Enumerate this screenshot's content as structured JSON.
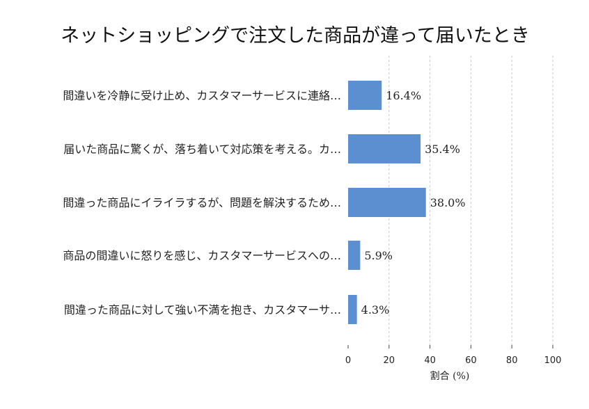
{
  "chart_data": {
    "type": "bar",
    "orientation": "horizontal",
    "title": "ネットショッピングで注文した商品が違って届いたとき",
    "categories": [
      "間違いを冷静に受け止め、カスタマーサービスに連絡…",
      "届いた商品に驚くが、落ち着いて対応策を考える。カ…",
      "間違った商品にイライラするが、問題を解決するため…",
      "商品の間違いに怒りを感じ、カスタマーサービスへの…",
      "間違った商品に対して強い不満を抱き、カスタマーサ…"
    ],
    "values": [
      16.4,
      35.4,
      38.0,
      5.9,
      4.3
    ],
    "value_labels": [
      "16.4%",
      "35.4%",
      "38.0%",
      "5.9%",
      "4.3%"
    ],
    "xlabel": "割合 (%)",
    "xlim": [
      0,
      100
    ],
    "xticks": [
      0,
      20,
      40,
      60,
      80,
      100
    ],
    "grid": "vertical dashed",
    "bar_color": "#5b8fd0"
  }
}
